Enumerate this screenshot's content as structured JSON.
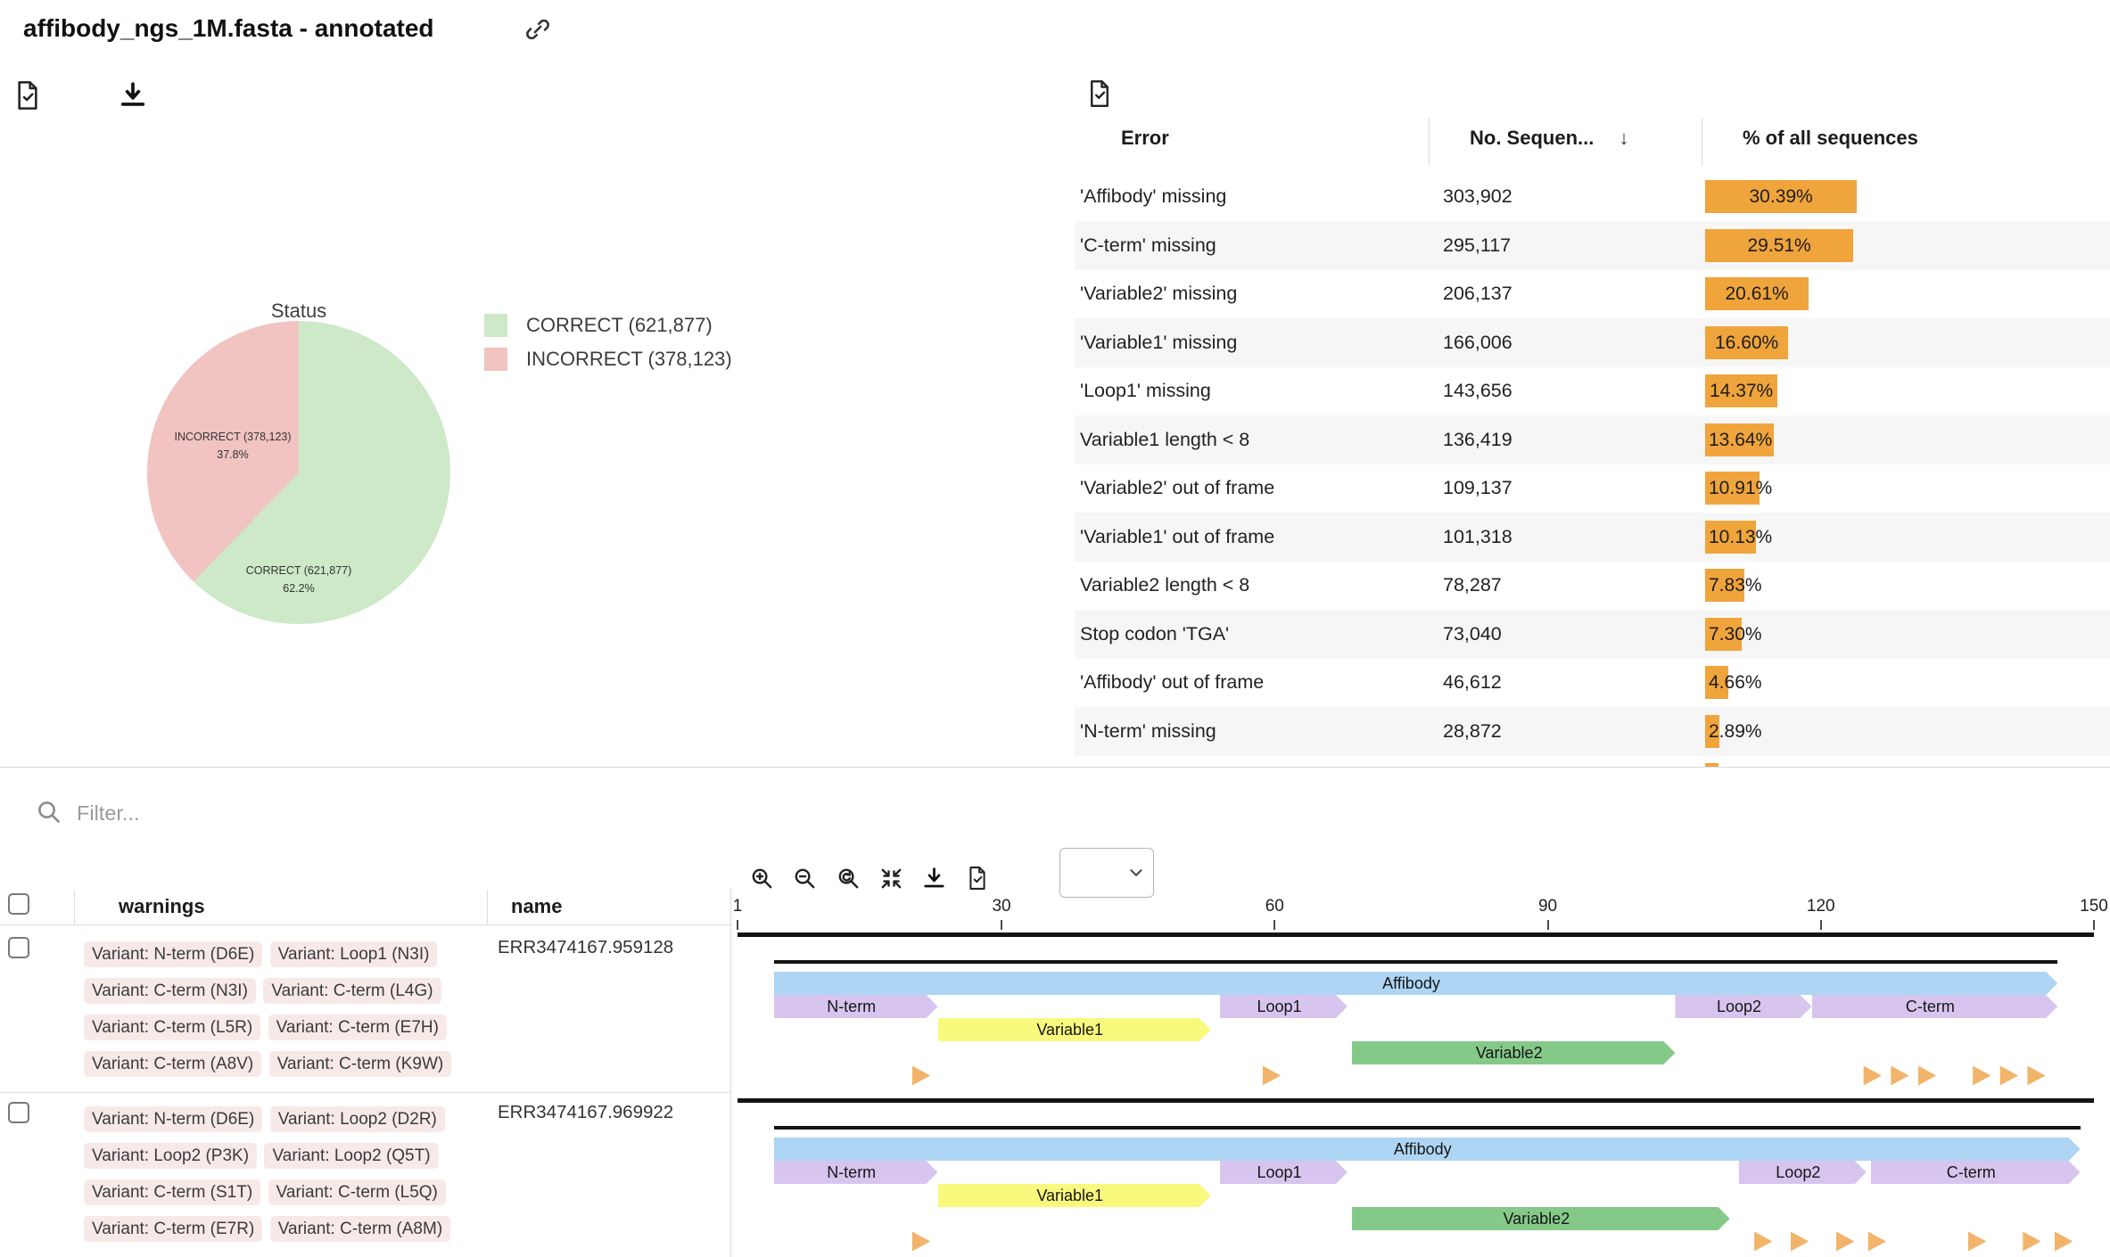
{
  "header": {
    "title": "affibody_ngs_1M.fasta - annotated"
  },
  "icons": [
    "report-icon",
    "download-icon",
    "link-icon",
    "zoom-in-icon",
    "zoom-out-icon",
    "zoom-reset-icon",
    "fit-icon",
    "search-icon",
    "chevron-down-icon",
    "sort-desc-icon",
    "variant-marker-icon"
  ],
  "pie": {
    "title": "Status",
    "slices": [
      {
        "label": "CORRECT (621,877)",
        "pct": 62.2,
        "pct_label": "62.2%",
        "color": "#cde9c8"
      },
      {
        "label": "INCORRECT (378,123)",
        "pct": 37.8,
        "pct_label": "37.8%",
        "color": "#f1c3c1"
      }
    ]
  },
  "chart_data": [
    {
      "type": "pie",
      "title": "Status",
      "labels": [
        "CORRECT (621,877)",
        "INCORRECT (378,123)"
      ],
      "values": [
        621877,
        378123
      ],
      "pct": [
        62.2,
        37.8
      ],
      "colors": [
        "#cde9c8",
        "#f1c3c1"
      ],
      "legend_position": "right"
    },
    {
      "type": "bar",
      "title": "% of all sequences",
      "categories": [
        "'Affibody' missing",
        "'C-term' missing",
        "'Variable2' missing",
        "'Variable1' missing",
        "'Loop1' missing",
        "Variable1 length < 8",
        "'Variable2' out of frame",
        "'Variable1' out of frame",
        "Variable2 length < 8",
        "Stop codon 'TGA'",
        "'Affibody' out of frame",
        "'N-term' missing"
      ],
      "values": [
        30.39,
        29.51,
        20.61,
        16.6,
        14.37,
        13.64,
        10.91,
        10.13,
        7.83,
        7.3,
        4.66,
        2.89
      ],
      "counts": [
        303902,
        295117,
        206137,
        166006,
        143656,
        136419,
        109137,
        101318,
        78287,
        73040,
        46612,
        28872
      ],
      "bar_color": "#f0a43c"
    }
  ],
  "error_table": {
    "columns": [
      "Error",
      "No. Sequen...",
      "% of all sequences"
    ],
    "sort_icon": "↓",
    "rows": [
      {
        "error": "'Affibody' missing",
        "count": "303,902",
        "pct": 30.39,
        "pct_label": "30.39%"
      },
      {
        "error": "'C-term' missing",
        "count": "295,117",
        "pct": 29.51,
        "pct_label": "29.51%"
      },
      {
        "error": "'Variable2' missing",
        "count": "206,137",
        "pct": 20.61,
        "pct_label": "20.61%"
      },
      {
        "error": "'Variable1' missing",
        "count": "166,006",
        "pct": 16.6,
        "pct_label": "16.60%"
      },
      {
        "error": "'Loop1' missing",
        "count": "143,656",
        "pct": 14.37,
        "pct_label": "14.37%"
      },
      {
        "error": "Variable1 length < 8",
        "count": "136,419",
        "pct": 13.64,
        "pct_label": "13.64%"
      },
      {
        "error": "'Variable2' out of frame",
        "count": "109,137",
        "pct": 10.91,
        "pct_label": "10.91%"
      },
      {
        "error": "'Variable1' out of frame",
        "count": "101,318",
        "pct": 10.13,
        "pct_label": "10.13%"
      },
      {
        "error": "Variable2 length < 8",
        "count": "78,287",
        "pct": 7.83,
        "pct_label": "7.83%"
      },
      {
        "error": "Stop codon 'TGA'",
        "count": "73,040",
        "pct": 7.3,
        "pct_label": "7.30%"
      },
      {
        "error": "'Affibody' out of frame",
        "count": "46,612",
        "pct": 4.66,
        "pct_label": "4.66%"
      },
      {
        "error": "'N-term' missing",
        "count": "28,872",
        "pct": 2.89,
        "pct_label": "2.89%"
      }
    ],
    "partial_row_pct": 2.6,
    "bar_color": "#f0a43c"
  },
  "filter": {
    "placeholder": "Filter..."
  },
  "results_table": {
    "columns": [
      "warnings",
      "name"
    ],
    "rows": [
      {
        "name": "ERR3474167.959128",
        "warnings": [
          "Variant: N-term (D6E)",
          "Variant: Loop1 (N3I)",
          "Variant: C-term (N3I)",
          "Variant: C-term (L4G)",
          "Variant: C-term (L5R)",
          "Variant: C-term (E7H)",
          "Variant: C-term (A8V)",
          "Variant: C-term (K9W)"
        ]
      },
      {
        "name": "ERR3474167.969922",
        "warnings": [
          "Variant: N-term (D6E)",
          "Variant: Loop2 (D2R)",
          "Variant: Loop2 (P3K)",
          "Variant: Loop2 (Q5T)",
          "Variant: C-term (S1T)",
          "Variant: C-term (L5Q)",
          "Variant: C-term (E7R)",
          "Variant: C-term (A8M)"
        ]
      }
    ]
  },
  "viewer": {
    "ruler_ticks": [
      1,
      30,
      60,
      90,
      120,
      150
    ],
    "sequence_length": 150,
    "colors": {
      "affibody": "#aed5f3",
      "region": "#d7c5ef",
      "variable1": "#f9f97e",
      "variable2": "#85c989",
      "variant": "#f1b46a"
    },
    "rows": [
      {
        "annotated": [
          5,
          146
        ],
        "features": [
          {
            "type": "affibody",
            "label": "Affibody",
            "start": 5,
            "end": 146
          },
          {
            "type": "region",
            "label": "N-term",
            "start": 5,
            "end": 23
          },
          {
            "type": "region",
            "label": "Loop1",
            "start": 54,
            "end": 68
          },
          {
            "type": "region",
            "label": "Loop2",
            "start": 104,
            "end": 119
          },
          {
            "type": "region",
            "label": "C-term",
            "start": 119,
            "end": 146
          },
          {
            "type": "variable1",
            "label": "Variable1",
            "start": 23,
            "end": 53
          },
          {
            "type": "variable2",
            "label": "Variable2",
            "start": 68.5,
            "end": 104
          }
        ],
        "variants": [
          21,
          59.5,
          125.5,
          128.5,
          131.5,
          137.5,
          140.5,
          143.5
        ]
      },
      {
        "annotated": [
          5,
          148.5
        ],
        "features": [
          {
            "type": "affibody",
            "label": "Affibody",
            "start": 5,
            "end": 148.5
          },
          {
            "type": "region",
            "label": "N-term",
            "start": 5,
            "end": 23
          },
          {
            "type": "region",
            "label": "Loop1",
            "start": 54,
            "end": 68
          },
          {
            "type": "region",
            "label": "Loop2",
            "start": 111,
            "end": 125
          },
          {
            "type": "region",
            "label": "C-term",
            "start": 125.5,
            "end": 148.5
          },
          {
            "type": "variable1",
            "label": "Variable1",
            "start": 23,
            "end": 53
          },
          {
            "type": "variable2",
            "label": "Variable2",
            "start": 68.5,
            "end": 110
          }
        ],
        "variants": [
          21,
          113.5,
          117.5,
          122.5,
          126,
          137,
          143,
          146.5
        ]
      }
    ]
  }
}
